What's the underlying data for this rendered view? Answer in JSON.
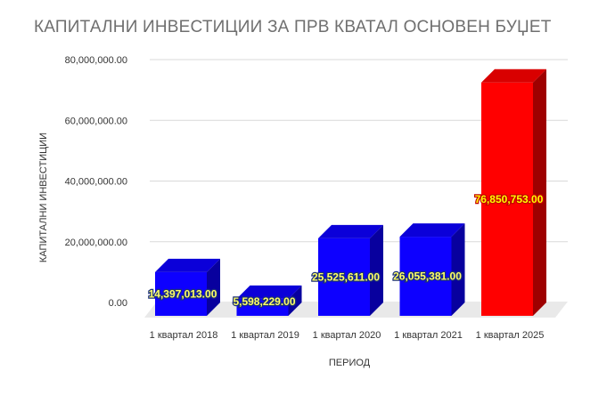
{
  "chart_data": {
    "type": "bar",
    "title": "КАПИТАЛНИ ИНВЕСТИЦИИ ЗА ПРВ КВАТАЛ ОСНОВЕН БУЏЕТ",
    "xlabel": "ПЕРИОД",
    "ylabel": "КАПИТАЛНИ ИНВЕСТИЦИИ",
    "categories": [
      "1 квартал 2018",
      "1 квартал 2019",
      "1 квартал 2020",
      "1 квартал 2021",
      "1 квартал 2025"
    ],
    "values": [
      14397013.0,
      5598229.0,
      25525611.0,
      26055381.0,
      76850753.0
    ],
    "data_labels": [
      "14,397,013.00",
      "5,598,229.00",
      "25,525,611.00",
      "26,055,381.00",
      "76,850,753.00"
    ],
    "yticks": [
      "0.00",
      "20,000,000.00",
      "40,000,000.00",
      "60,000,000.00",
      "80,000,000.00"
    ],
    "ylim": [
      0,
      80000000
    ],
    "grid": true,
    "style": "3d",
    "colors": {
      "bars": [
        "#0d00ff",
        "#0d00ff",
        "#0d00ff",
        "#0d00ff",
        "#ff0000"
      ],
      "grid": "#d9d9d9",
      "floor": "#e9e9e9",
      "label_fill": [
        "#ffff66",
        "#ffff66",
        "#ffff66",
        "#ffff66",
        "#ffff00"
      ]
    }
  }
}
